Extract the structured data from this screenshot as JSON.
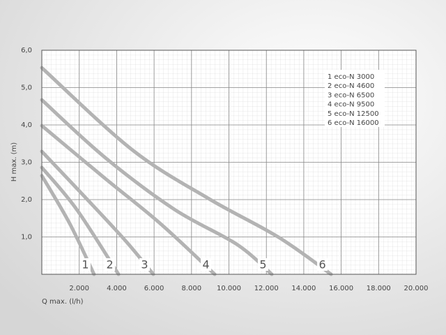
{
  "chart_data": {
    "type": "line",
    "xlabel": "Q max. (l/h)",
    "ylabel": "H max. (m)",
    "xlim": [
      0,
      20000
    ],
    "ylim": [
      0,
      6
    ],
    "xticks": [
      {
        "value": 2000,
        "label": "2.000"
      },
      {
        "value": 4000,
        "label": "4.000"
      },
      {
        "value": 6000,
        "label": "6.000"
      },
      {
        "value": 8000,
        "label": "8.000"
      },
      {
        "value": 10000,
        "label": "10.000"
      },
      {
        "value": 12000,
        "label": "12.000"
      },
      {
        "value": 14000,
        "label": "14.000"
      },
      {
        "value": 16000,
        "label": "16.000"
      },
      {
        "value": 18000,
        "label": "18.000"
      },
      {
        "value": 20000,
        "label": "20.000"
      }
    ],
    "yticks": [
      {
        "value": 1,
        "label": "1,0"
      },
      {
        "value": 2,
        "label": "2,0"
      },
      {
        "value": 3,
        "label": "3,0"
      },
      {
        "value": 4,
        "label": "4,0"
      },
      {
        "value": 5,
        "label": "5,0"
      },
      {
        "value": 6,
        "label": "6,0"
      }
    ],
    "grid": true,
    "series": [
      {
        "name": "1 eco-N 3000",
        "curve_label": "1",
        "color": "#b3b3b3",
        "x": [
          0,
          1490,
          2790
        ],
        "values": [
          2.64,
          1.36,
          0
        ]
      },
      {
        "name": "2 eco-N 4600",
        "curve_label": "2",
        "color": "#b3b3b3",
        "x": [
          0,
          1860,
          4100
        ],
        "values": [
          2.86,
          1.74,
          0
        ]
      },
      {
        "name": "3 eco-N 6500",
        "curve_label": "3",
        "color": "#b3b3b3",
        "x": [
          0,
          2230,
          4470,
          5960
        ],
        "values": [
          3.29,
          2.11,
          0.9,
          0
        ]
      },
      {
        "name": "4 eco-N 9500",
        "curve_label": "4",
        "color": "#b3b3b3",
        "x": [
          0,
          3350,
          6330,
          9240
        ],
        "values": [
          3.98,
          2.58,
          1.36,
          0
        ]
      },
      {
        "name": "5 eco-N 12500",
        "curve_label": "5",
        "color": "#b3b3b3",
        "x": [
          0,
          3350,
          7080,
          10430,
          12290
        ],
        "values": [
          4.67,
          3.14,
          1.74,
          0.8,
          0
        ]
      },
      {
        "name": "6 eco-N 16000",
        "curve_label": "6",
        "color": "#b3b3b3",
        "x": [
          0,
          4840,
          8940,
          12660,
          15460
        ],
        "values": [
          5.53,
          3.33,
          2.02,
          0.99,
          0
        ]
      }
    ]
  }
}
